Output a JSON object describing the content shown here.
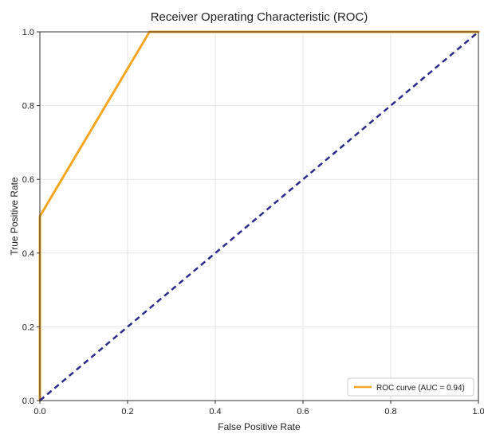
{
  "chart_data": {
    "type": "line",
    "title": "Receiver Operating Characteristic (ROC)",
    "xlabel": "False Positive Rate",
    "ylabel": "True Positive Rate",
    "xlim": [
      0.0,
      1.0
    ],
    "ylim": [
      0.0,
      1.0
    ],
    "xticks": [
      "0.0",
      "0.2",
      "0.4",
      "0.6",
      "0.8",
      "1.0"
    ],
    "yticks": [
      "0.0",
      "0.2",
      "0.4",
      "0.6",
      "0.8",
      "1.0"
    ],
    "grid": true,
    "legend_position": "bottom-right",
    "series": [
      {
        "name": "ROC curve (AUC = 0.94)",
        "color": "#f5a623",
        "style": "solid",
        "x": [
          0.0,
          0.0,
          0.25,
          1.0
        ],
        "y": [
          0.0,
          0.5,
          1.0,
          1.0
        ]
      },
      {
        "color": "#2e2a8c",
        "style": "dashed",
        "x": [
          0.0,
          1.0
        ],
        "y": [
          0.0,
          1.0
        ]
      }
    ]
  }
}
